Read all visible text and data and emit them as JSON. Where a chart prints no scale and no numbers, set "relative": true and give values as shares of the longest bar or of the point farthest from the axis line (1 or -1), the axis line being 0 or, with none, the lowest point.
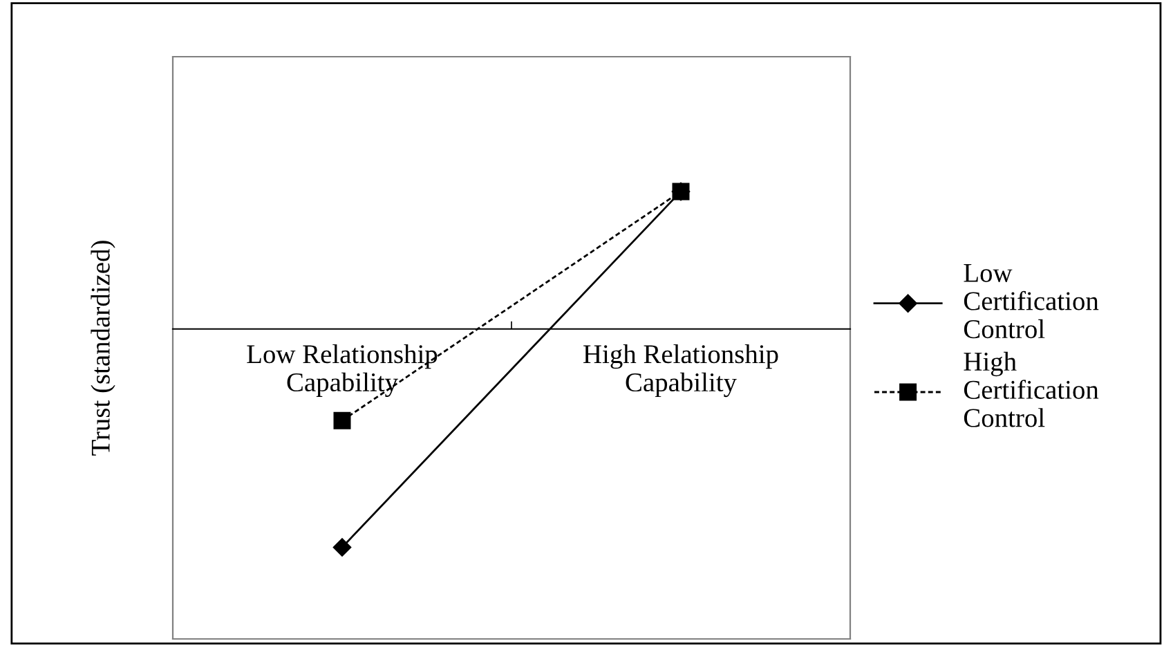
{
  "chart_data": {
    "type": "line",
    "relative": true,
    "ylabel": "Trust (standardized)",
    "categories": [
      "Low Relationship\nCapability",
      "High Relationship\nCapability"
    ],
    "series": [
      {
        "name": "Low\nCertification\nControl",
        "color": "#000000",
        "values": [
          -1,
          0.63
        ],
        "marker": "diamond",
        "line_style": "solid"
      },
      {
        "name": "High\nCertification\nControl",
        "color": "#000000",
        "values": [
          -0.42,
          0.63
        ],
        "marker": "square",
        "line_style": "dashed"
      }
    ],
    "legend": "right",
    "grid": false
  }
}
